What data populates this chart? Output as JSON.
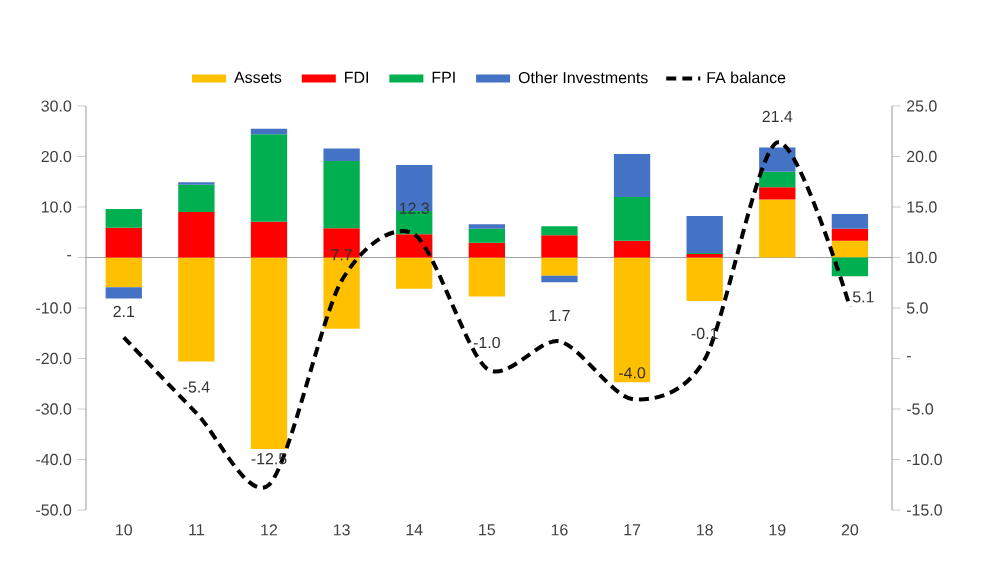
{
  "chart_data": {
    "type": "bar",
    "stacked": true,
    "legend": "top",
    "categories": [
      "10",
      "11",
      "12",
      "13",
      "14",
      "15",
      "16",
      "17",
      "18",
      "19",
      "20"
    ],
    "series": [
      {
        "name": "Assets",
        "color": "#ffc000",
        "values": [
          -5.9,
          -20.6,
          -37.9,
          -14.1,
          -6.2,
          -7.7,
          -3.6,
          -24.7,
          -8.6,
          11.5,
          3.3
        ]
      },
      {
        "name": "FDI",
        "color": "#ff0000",
        "values": [
          5.9,
          9.0,
          7.1,
          5.8,
          4.6,
          2.9,
          4.4,
          3.3,
          0.7,
          2.4,
          2.4
        ]
      },
      {
        "name": "FPI",
        "color": "#00b050",
        "values": [
          3.7,
          5.4,
          17.3,
          13.3,
          4.6,
          2.8,
          1.8,
          8.7,
          0.2,
          3.1,
          -3.7
        ]
      },
      {
        "name": "Other Investments",
        "color": "#4472c4",
        "values": [
          -2.2,
          0.5,
          1.1,
          2.5,
          9.1,
          0.9,
          -1.3,
          8.5,
          7.3,
          4.8,
          2.9
        ]
      },
      {
        "name": "FA balance",
        "type": "line",
        "axis": "y2",
        "color": "#000000",
        "line_style": "dashed",
        "marker": "none",
        "values": [
          2.1,
          -5.4,
          -12.5,
          7.7,
          12.3,
          -1.0,
          1.7,
          -4.0,
          -0.1,
          21.4,
          5.1
        ],
        "value_labels": [
          "2.1",
          "-5.4",
          "-12.5",
          "7.7",
          "12.3",
          "-1.0",
          "1.7",
          "-4.0",
          "-0.1",
          "21.4",
          "5.1"
        ]
      }
    ],
    "ylim": [
      -50,
      30
    ],
    "yticks": [
      {
        "value": -50,
        "label": "-50.0"
      },
      {
        "value": -40,
        "label": "-40.0"
      },
      {
        "value": -30,
        "label": "-30.0"
      },
      {
        "value": -20,
        "label": "-20.0"
      },
      {
        "value": -10,
        "label": "-10.0"
      },
      {
        "value": 0,
        "label": "-"
      },
      {
        "value": 10,
        "label": "10.0"
      },
      {
        "value": 20,
        "label": "20.0"
      },
      {
        "value": 30,
        "label": "30.0"
      }
    ],
    "y2lim": [
      -15,
      25
    ],
    "y2ticks": [
      {
        "value": -15,
        "label": "-15.0"
      },
      {
        "value": -10,
        "label": "-10.0"
      },
      {
        "value": -5,
        "label": "-5.0"
      },
      {
        "value": 0,
        "label": "-"
      },
      {
        "value": 5,
        "label": "5.0"
      },
      {
        "value": 10,
        "label": "10.0"
      },
      {
        "value": 15,
        "label": "15.0"
      },
      {
        "value": 20,
        "label": "20.0"
      },
      {
        "value": 25,
        "label": "25.0"
      }
    ]
  }
}
